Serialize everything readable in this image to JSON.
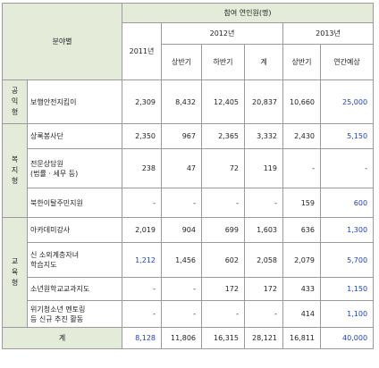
{
  "header": {
    "field": "분야별",
    "participants": "참여  연인원(명)",
    "y2011": "2011년",
    "y2012": "2012년",
    "y2013": "2013년",
    "h1": "상반기",
    "h2": "하반기",
    "sum": "계",
    "h1_2013": "상반기",
    "forecast": "연간예상"
  },
  "groups": [
    {
      "category": "공익형",
      "chars": [
        "공",
        "익",
        "형"
      ]
    },
    {
      "category": "복지형",
      "chars": [
        "복",
        "지",
        "형"
      ]
    },
    {
      "category": "교육형",
      "chars": [
        "교",
        "육",
        "형"
      ]
    }
  ],
  "rows": [
    {
      "name": "보행안전지킴이",
      "y2011": "2,309",
      "h1": "8,432",
      "h2": "12,405",
      "sum": "20,837",
      "h1_2013": "10,660",
      "forecast": "25,000"
    },
    {
      "name": "상록봉사단",
      "y2011": "2,350",
      "h1": "967",
      "h2": "2,365",
      "sum": "3,332",
      "h1_2013": "2,430",
      "forecast": "5,150"
    },
    {
      "name": "전문상담원\n(법률 · 세무 등)",
      "y2011": "238",
      "h1": "47",
      "h2": "72",
      "sum": "119",
      "h1_2013": "-",
      "forecast": "-"
    },
    {
      "name": "북한이탈주민지원",
      "y2011": "-",
      "h1": "-",
      "h2": "-",
      "sum": "-",
      "h1_2013": "159",
      "forecast": "600"
    },
    {
      "name": "아카데미강사",
      "y2011": "2,019",
      "h1": "904",
      "h2": "699",
      "sum": "1,603",
      "h1_2013": "636",
      "forecast": "1,300"
    },
    {
      "name": "신 소외계층자녀\n학습지도",
      "y2011": "1,212",
      "h1": "1,456",
      "h2": "602",
      "sum": "2,058",
      "h1_2013": "2,079",
      "forecast": "5,700"
    },
    {
      "name": "소년원학교교과지도",
      "y2011": "-",
      "h1": "-",
      "h2": "172",
      "sum": "172",
      "h1_2013": "433",
      "forecast": "1,150"
    },
    {
      "name": "위기청소년 멘토링\n등 신규 추진 활동",
      "y2011": "-",
      "h1": "-",
      "h2": "-",
      "sum": "-",
      "h1_2013": "414",
      "forecast": "1,100"
    }
  ],
  "total": {
    "label": "계",
    "y2011": "8,128",
    "h1": "11,806",
    "h2": "16,315",
    "sum": "28,121",
    "h1_2013": "16,811",
    "forecast": "40,000"
  },
  "colors": {
    "header_bg": "#e4ecd9",
    "highlight": "#1f3fbf",
    "border": "#9a9a9a"
  }
}
